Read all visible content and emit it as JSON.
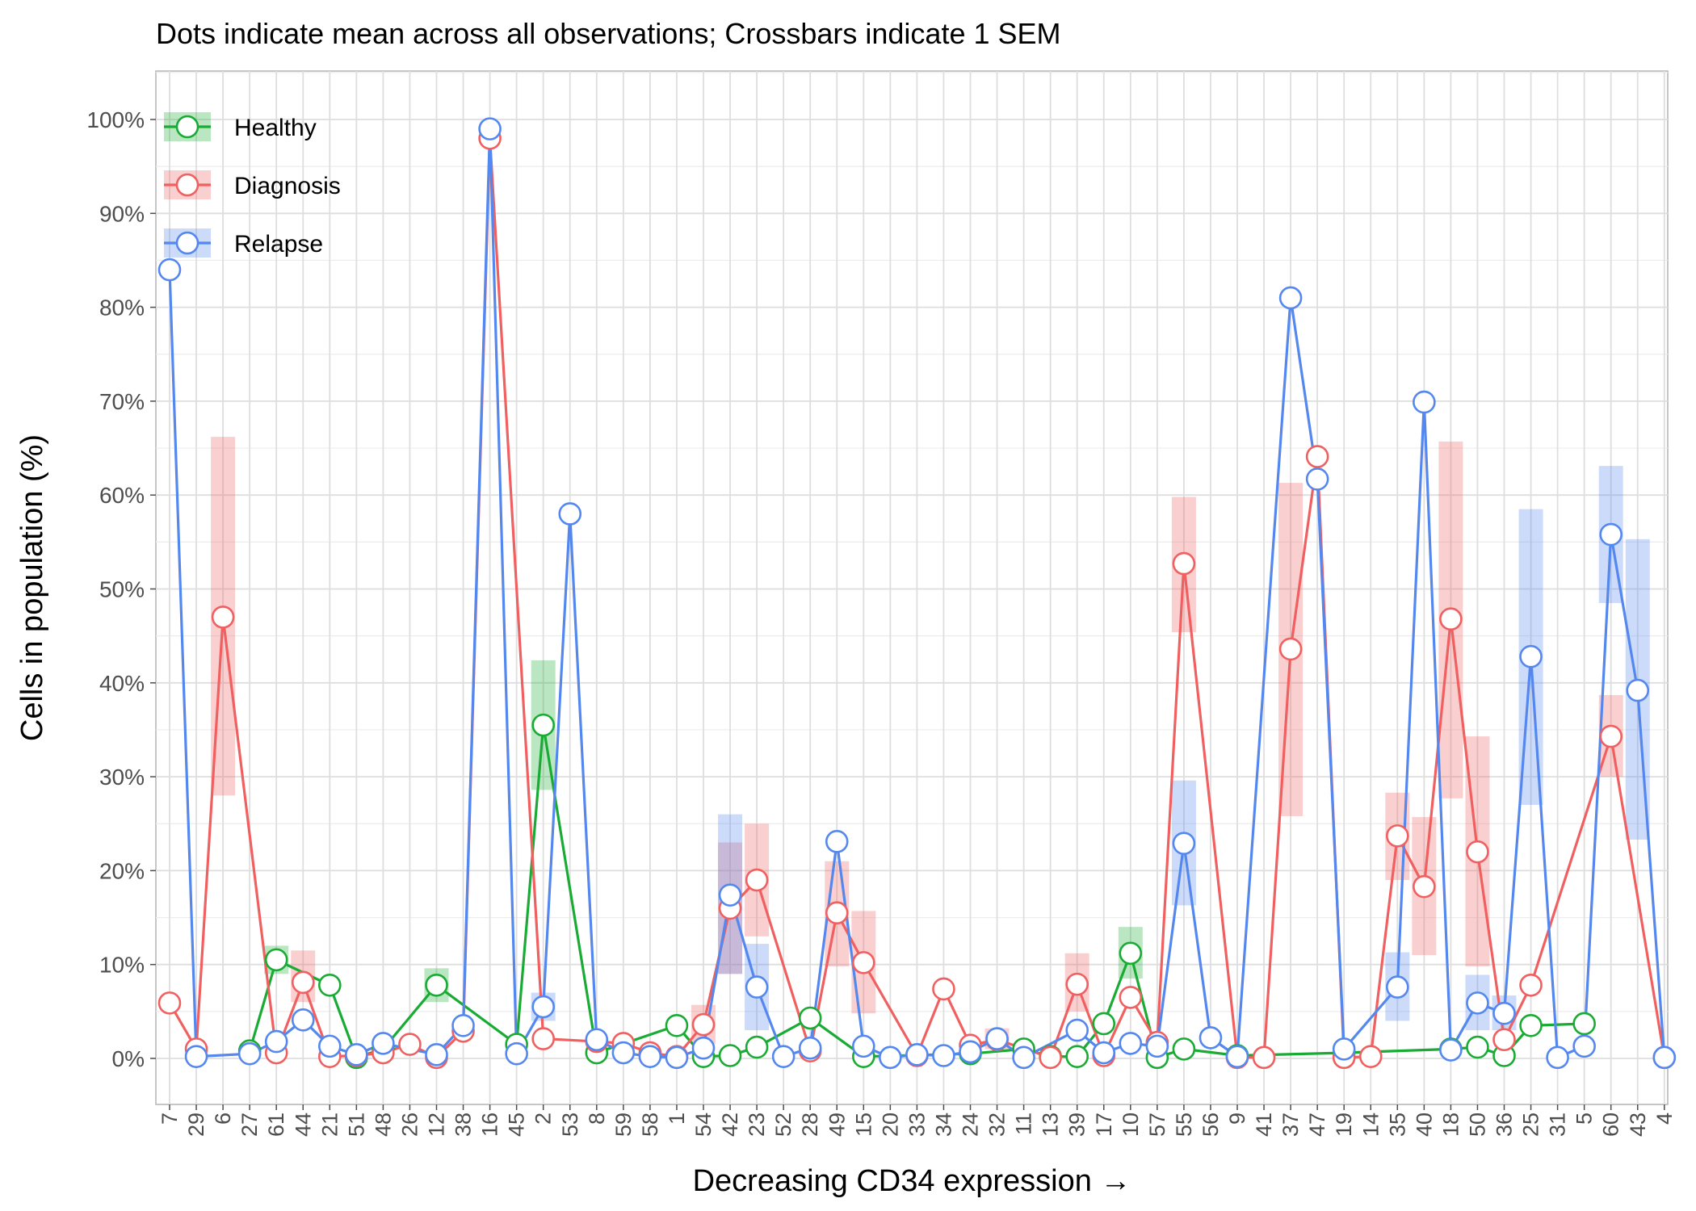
{
  "chart_data": {
    "type": "line",
    "title": "Dots indicate mean across all observations; Crossbars indicate 1 SEM",
    "xlabel": "Decreasing CD34 expression →",
    "ylabel": "Cells in population (%)",
    "ylim": [
      -5,
      105
    ],
    "yticks": [
      0,
      10,
      20,
      30,
      40,
      50,
      60,
      70,
      80,
      90,
      100
    ],
    "ytick_labels": [
      "0%",
      "10%",
      "20%",
      "30%",
      "40%",
      "50%",
      "60%",
      "70%",
      "80%",
      "90%",
      "100%"
    ],
    "grid": true,
    "legend_position": "top-left",
    "categories": [
      "7",
      "29",
      "6",
      "27",
      "61",
      "44",
      "21",
      "51",
      "48",
      "26",
      "12",
      "38",
      "16",
      "45",
      "2",
      "53",
      "8",
      "59",
      "58",
      "1",
      "54",
      "42",
      "23",
      "52",
      "28",
      "49",
      "15",
      "20",
      "33",
      "34",
      "24",
      "32",
      "11",
      "13",
      "39",
      "17",
      "10",
      "57",
      "55",
      "56",
      "9",
      "41",
      "37",
      "47",
      "19",
      "14",
      "35",
      "40",
      "18",
      "50",
      "36",
      "25",
      "31",
      "5",
      "60",
      "43",
      "4"
    ],
    "series": [
      {
        "name": "Healthy",
        "color": "#1aab35",
        "points": [
          [
            3,
            0.8
          ],
          [
            4,
            10.5
          ],
          [
            6,
            7.8
          ],
          [
            7,
            0.1
          ],
          [
            8,
            1.0
          ],
          [
            10,
            7.8
          ],
          [
            13,
            1.5
          ],
          [
            14,
            35.5
          ],
          [
            16,
            0.6
          ],
          [
            19,
            3.5
          ],
          [
            20,
            0.2
          ],
          [
            21,
            0.3
          ],
          [
            22,
            1.2
          ],
          [
            24,
            4.3
          ],
          [
            26,
            0.2
          ],
          [
            30,
            0.5
          ],
          [
            32,
            1.0
          ],
          [
            33,
            0.2
          ],
          [
            34,
            0.2
          ],
          [
            35,
            3.7
          ],
          [
            36,
            11.2
          ],
          [
            37,
            0.1
          ],
          [
            38,
            1.0
          ],
          [
            40,
            0.3
          ],
          [
            44,
            0.6
          ],
          [
            48,
            1.0
          ],
          [
            49,
            1.2
          ],
          [
            50,
            0.3
          ],
          [
            51,
            3.5
          ],
          [
            53,
            3.7
          ]
        ],
        "sem": [
          [
            4,
            9.0,
            12.0
          ],
          [
            10,
            6.0,
            9.6
          ],
          [
            14,
            28.6,
            42.4
          ],
          [
            36,
            8.5,
            14.0
          ]
        ]
      },
      {
        "name": "Diagnosis",
        "color": "#f06060",
        "points": [
          [
            0,
            5.9
          ],
          [
            1,
            1.0
          ],
          [
            2,
            47.0
          ],
          [
            4,
            0.6
          ],
          [
            5,
            8.1
          ],
          [
            6,
            0.2
          ],
          [
            7,
            0.3
          ],
          [
            8,
            0.6
          ],
          [
            9,
            1.5
          ],
          [
            10,
            0.1
          ],
          [
            11,
            2.9
          ],
          [
            12,
            98.0
          ],
          [
            14,
            2.1
          ],
          [
            16,
            1.8
          ],
          [
            17,
            1.6
          ],
          [
            18,
            0.6
          ],
          [
            19,
            0.2
          ],
          [
            20,
            3.6
          ],
          [
            21,
            16.0
          ],
          [
            22,
            19.0
          ],
          [
            24,
            0.8
          ],
          [
            25,
            15.5
          ],
          [
            26,
            10.2
          ],
          [
            28,
            0.3
          ],
          [
            29,
            7.4
          ],
          [
            30,
            1.4
          ],
          [
            31,
            2.0
          ],
          [
            33,
            0.1
          ],
          [
            34,
            7.9
          ],
          [
            35,
            0.3
          ],
          [
            36,
            6.5
          ],
          [
            37,
            1.7
          ],
          [
            38,
            52.7
          ],
          [
            40,
            0.1
          ],
          [
            41,
            0.1
          ],
          [
            42,
            43.6
          ],
          [
            43,
            64.1
          ],
          [
            44,
            0.1
          ],
          [
            45,
            0.2
          ],
          [
            46,
            23.7
          ],
          [
            47,
            18.3
          ],
          [
            48,
            46.8
          ],
          [
            49,
            22.0
          ],
          [
            50,
            2.0
          ],
          [
            51,
            7.8
          ],
          [
            54,
            34.3
          ],
          [
            56,
            0.1
          ]
        ],
        "sem": [
          [
            2,
            28.0,
            66.2
          ],
          [
            5,
            6.0,
            11.5
          ],
          [
            20,
            1.5,
            5.7
          ],
          [
            21,
            9.0,
            23.0
          ],
          [
            22,
            13.0,
            25.0
          ],
          [
            25,
            9.8,
            21.0
          ],
          [
            26,
            4.8,
            15.7
          ],
          [
            31,
            1.0,
            3.2
          ],
          [
            34,
            5.0,
            11.2
          ],
          [
            38,
            45.4,
            59.8
          ],
          [
            42,
            25.8,
            61.3
          ],
          [
            46,
            19.0,
            28.3
          ],
          [
            47,
            11.0,
            25.7
          ],
          [
            48,
            27.7,
            65.7
          ],
          [
            49,
            9.8,
            34.3
          ],
          [
            54,
            30.0,
            38.7
          ]
        ]
      },
      {
        "name": "Relapse",
        "color": "#5588ee",
        "points": [
          [
            0,
            84.0
          ],
          [
            1,
            0.2
          ],
          [
            3,
            0.5
          ],
          [
            4,
            1.8
          ],
          [
            5,
            4.1
          ],
          [
            6,
            1.3
          ],
          [
            7,
            0.4
          ],
          [
            8,
            1.6
          ],
          [
            10,
            0.4
          ],
          [
            11,
            3.5
          ],
          [
            12,
            99.0
          ],
          [
            13,
            0.5
          ],
          [
            14,
            5.5
          ],
          [
            15,
            58.0
          ],
          [
            16,
            2.0
          ],
          [
            17,
            0.6
          ],
          [
            18,
            0.2
          ],
          [
            19,
            0.1
          ],
          [
            20,
            1.1
          ],
          [
            21,
            17.4
          ],
          [
            22,
            7.6
          ],
          [
            23,
            0.2
          ],
          [
            24,
            1.1
          ],
          [
            25,
            23.1
          ],
          [
            26,
            1.3
          ],
          [
            27,
            0.1
          ],
          [
            28,
            0.4
          ],
          [
            29,
            0.3
          ],
          [
            30,
            0.7
          ],
          [
            31,
            2.1
          ],
          [
            32,
            0.1
          ],
          [
            34,
            3.0
          ],
          [
            35,
            0.6
          ],
          [
            36,
            1.6
          ],
          [
            37,
            1.3
          ],
          [
            38,
            22.9
          ],
          [
            39,
            2.2
          ],
          [
            40,
            0.2
          ],
          [
            42,
            81.0
          ],
          [
            43,
            61.7
          ],
          [
            44,
            1.0
          ],
          [
            46,
            7.6
          ],
          [
            47,
            69.9
          ],
          [
            48,
            0.9
          ],
          [
            49,
            5.9
          ],
          [
            50,
            4.8
          ],
          [
            51,
            42.8
          ],
          [
            52,
            0.1
          ],
          [
            53,
            1.3
          ],
          [
            54,
            55.8
          ],
          [
            55,
            39.2
          ],
          [
            56,
            0.1
          ]
        ],
        "sem": [
          [
            14,
            4.0,
            7.0
          ],
          [
            21,
            9.0,
            26.0
          ],
          [
            22,
            3.0,
            12.2
          ],
          [
            38,
            16.3,
            29.6
          ],
          [
            46,
            4.0,
            11.3
          ],
          [
            49,
            3.0,
            8.9
          ],
          [
            50,
            3.0,
            6.7
          ],
          [
            51,
            27.0,
            58.5
          ],
          [
            54,
            48.5,
            63.1
          ],
          [
            55,
            23.3,
            55.3
          ]
        ]
      }
    ]
  }
}
